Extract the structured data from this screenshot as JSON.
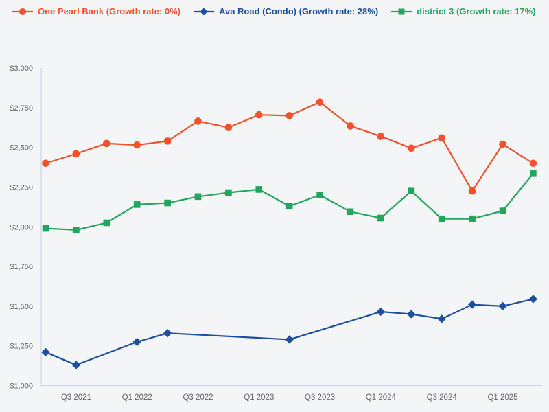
{
  "colors": {
    "background": "#f4f5f7",
    "axis_line": "#cdd7e9",
    "tick_text": "#63636e"
  },
  "chart_data": {
    "type": "line",
    "title": "",
    "xlabel": "",
    "ylabel": "",
    "grid": false,
    "legend_position": "top-left",
    "x_axis": {
      "num_points": 17,
      "tick_positions": [
        1,
        3,
        5,
        7,
        9,
        11,
        13,
        15
      ],
      "tick_labels": [
        "Q3 2021",
        "Q1 2022",
        "Q3 2022",
        "Q1 2023",
        "Q3 2023",
        "Q1 2024",
        "Q3 2024",
        "Q1 2025"
      ]
    },
    "y_axis": {
      "min": 1000,
      "max": 3000,
      "step": 250,
      "tick_labels": [
        "$1,000",
        "$1,250",
        "$1,500",
        "$1,750",
        "$2,000",
        "$2,250",
        "$2,500",
        "$2,750",
        "$3,000"
      ]
    },
    "series": [
      {
        "name": "One Pearl Bank (Growth rate: 0%)",
        "color": "#f4502c",
        "marker": "circle",
        "points": [
          [
            0,
            2400
          ],
          [
            1,
            2460
          ],
          [
            2,
            2525
          ],
          [
            3,
            2515
          ],
          [
            4,
            2540
          ],
          [
            5,
            2665
          ],
          [
            6,
            2625
          ],
          [
            7,
            2705
          ],
          [
            8,
            2700
          ],
          [
            9,
            2785
          ],
          [
            10,
            2635
          ],
          [
            11,
            2570
          ],
          [
            12,
            2495
          ],
          [
            13,
            2560
          ],
          [
            14,
            2225
          ],
          [
            15,
            2520
          ],
          [
            16,
            2400
          ]
        ]
      },
      {
        "name": "Ava Road (Condo) (Growth rate: 28%)",
        "color": "#1e4f9e",
        "marker": "diamond",
        "points": [
          [
            0,
            1210
          ],
          [
            1,
            1130
          ],
          [
            3,
            1275
          ],
          [
            4,
            1330
          ],
          [
            8,
            1290
          ],
          [
            11,
            1465
          ],
          [
            12,
            1450
          ],
          [
            13,
            1420
          ],
          [
            14,
            1510
          ],
          [
            15,
            1500
          ],
          [
            16,
            1545
          ]
        ]
      },
      {
        "name": "district 3 (Growth rate: 17%)",
        "color": "#23a55d",
        "marker": "square",
        "points": [
          [
            0,
            1990
          ],
          [
            1,
            1980
          ],
          [
            2,
            2025
          ],
          [
            3,
            2140
          ],
          [
            4,
            2150
          ],
          [
            5,
            2190
          ],
          [
            6,
            2215
          ],
          [
            7,
            2235
          ],
          [
            8,
            2130
          ],
          [
            9,
            2200
          ],
          [
            10,
            2095
          ],
          [
            11,
            2055
          ],
          [
            12,
            2225
          ],
          [
            13,
            2050
          ],
          [
            14,
            2050
          ],
          [
            15,
            2100
          ],
          [
            16,
            2335
          ]
        ]
      }
    ]
  }
}
